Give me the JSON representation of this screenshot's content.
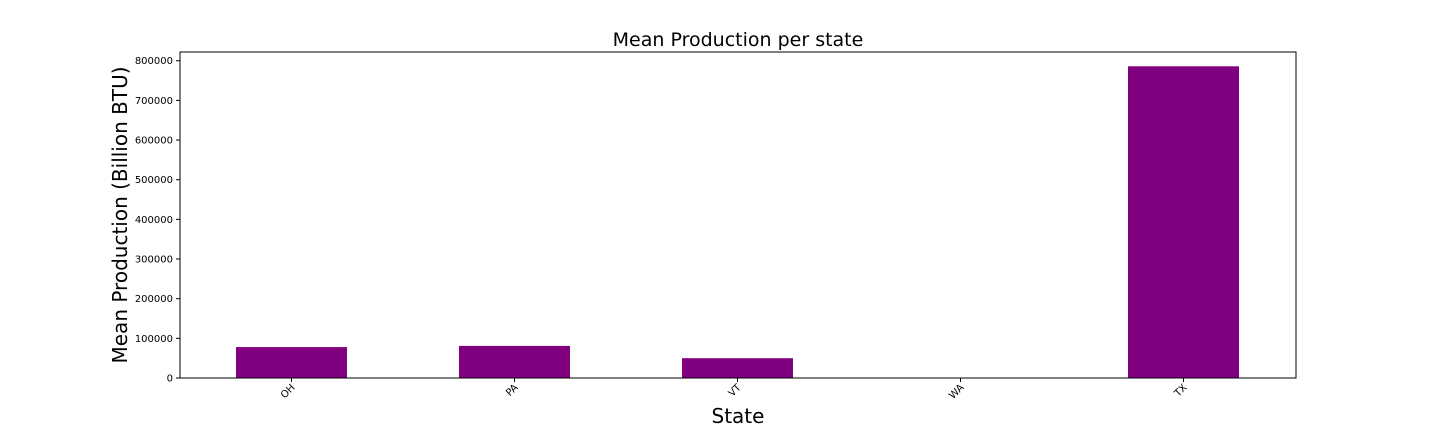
{
  "chart_data": {
    "type": "bar",
    "title": "Mean Production per state",
    "xlabel": "State",
    "ylabel": "Mean Production (Billion BTU)",
    "categories": [
      "OH",
      "PA",
      "VT",
      "WA",
      "TX"
    ],
    "values": [
      78000,
      81000,
      50000,
      0,
      786000
    ],
    "ylim": [
      0,
      822000
    ],
    "yticks": [
      0,
      100000,
      200000,
      300000,
      400000,
      500000,
      600000,
      700000,
      800000
    ],
    "bar_color": "#800080",
    "grid": false,
    "legend": "none"
  }
}
